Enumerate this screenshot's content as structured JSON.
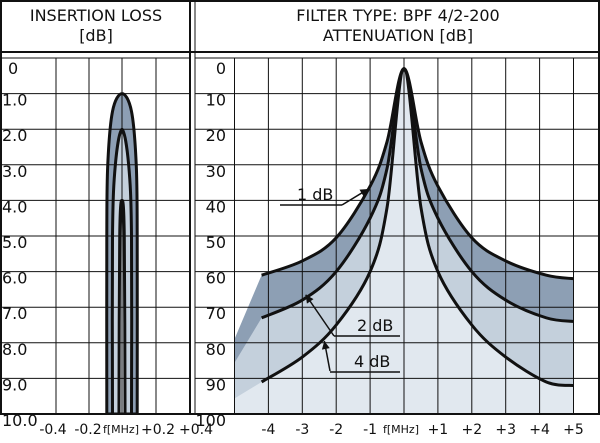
{
  "chart_data": [
    {
      "type": "area",
      "title_line1": "INSERTION LOSS",
      "title_line2": "[dB]",
      "xlabel": "f[MHz]",
      "x_tick_labels": [
        "-0.4",
        "-0.2",
        "+0.2",
        "+0.4"
      ],
      "y_tick_labels": [
        "0",
        "1.0",
        "2.0",
        "3.0",
        "4.0",
        "5.0",
        "6.0",
        "7.0",
        "8.0",
        "9.0",
        "10.0"
      ],
      "xlim": [
        -0.4,
        0.4
      ],
      "ylim": [
        0,
        10
      ],
      "series": [
        {
          "min_loss_db": 1,
          "half_width_mhz": [
            [
              1.0,
              0.0
            ],
            [
              1.5,
              0.05
            ],
            [
              3.0,
              0.075
            ],
            [
              5.0,
              0.08
            ],
            [
              10.0,
              0.08
            ]
          ]
        },
        {
          "min_loss_db": 2,
          "half_width_mhz": [
            [
              2.0,
              0.0
            ],
            [
              3.0,
              0.035
            ],
            [
              5.0,
              0.05
            ],
            [
              10.0,
              0.05
            ]
          ]
        },
        {
          "min_loss_db": 4,
          "half_width_mhz": [
            [
              4.0,
              0.0
            ],
            [
              5.0,
              0.012
            ],
            [
              10.0,
              0.016
            ]
          ]
        }
      ],
      "grid": true
    },
    {
      "type": "line",
      "title_line1": "FILTER TYPE: BPF 4/2-200",
      "title_line2": "ATTENUATION [dB]",
      "xlabel": "f[MHz]",
      "x_tick_labels": [
        "-4",
        "-3",
        "-2",
        "-1",
        "+1",
        "+2",
        "+3",
        "+4",
        "+5"
      ],
      "y_tick_labels": [
        "0",
        "10",
        "20",
        "30",
        "40",
        "50",
        "60",
        "70",
        "80",
        "90",
        "100"
      ],
      "xlim": [
        -5,
        5
      ],
      "ylim": [
        0,
        100
      ],
      "series": [
        {
          "name": "1 dB",
          "x": [
            -4.2,
            -3,
            -2,
            -1,
            -0.5,
            0,
            0.5,
            1,
            2,
            3,
            4.2,
            5
          ],
          "y": [
            61,
            57,
            50.5,
            36,
            23.5,
            3,
            23.5,
            36,
            50.5,
            57,
            61,
            62
          ]
        },
        {
          "name": "2 dB",
          "x": [
            -4.2,
            -3,
            -2,
            -1,
            -0.5,
            0,
            0.5,
            1,
            2,
            3,
            4.2,
            5
          ],
          "y": [
            73,
            68,
            60,
            45,
            31,
            3,
            31,
            45,
            60,
            68,
            73,
            74
          ]
        },
        {
          "name": "4 dB",
          "x": [
            -4.2,
            -3,
            -2,
            -1,
            -0.5,
            0,
            0.5,
            1,
            2,
            3,
            4.2,
            5
          ],
          "y": [
            91,
            84,
            75,
            60,
            42,
            3,
            42,
            60,
            75,
            84,
            91,
            92
          ]
        }
      ],
      "grid": true
    }
  ],
  "colors": {
    "band_dark": "#8d9fb4",
    "band_mid": "#c4d0dc",
    "band_light": "#e1e8ef",
    "curve": "#111111",
    "grid": "#111111"
  }
}
